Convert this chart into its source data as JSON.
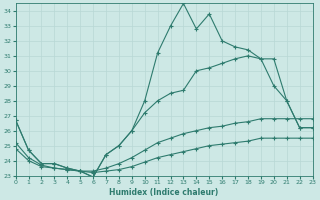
{
  "xlabel": "Humidex (Indice chaleur)",
  "xlim": [
    0,
    23
  ],
  "ylim": [
    23,
    34.5
  ],
  "yticks": [
    23,
    24,
    25,
    26,
    27,
    28,
    29,
    30,
    31,
    32,
    33,
    34
  ],
  "xticks": [
    0,
    1,
    2,
    3,
    4,
    5,
    6,
    7,
    8,
    9,
    10,
    11,
    12,
    13,
    14,
    15,
    16,
    17,
    18,
    19,
    20,
    21,
    22,
    23
  ],
  "bg_color": "#cde8e5",
  "grid_color": "#b8d8d5",
  "line_color": "#2e7b6e",
  "lines": [
    {
      "x": [
        0,
        1,
        2,
        3,
        4,
        5,
        6,
        7,
        8,
        9,
        10,
        11,
        12,
        13,
        14,
        15,
        16,
        17,
        18,
        19,
        20,
        21,
        22,
        23
      ],
      "y": [
        26.7,
        24.7,
        23.8,
        23.8,
        23.5,
        23.3,
        22.9,
        24.4,
        25.0,
        26.0,
        28.0,
        31.2,
        33.0,
        34.5,
        32.8,
        33.8,
        32.0,
        31.6,
        31.4,
        30.8,
        30.8,
        28.0,
        26.2,
        26.2
      ]
    },
    {
      "x": [
        0,
        1,
        2,
        3,
        4,
        5,
        6,
        7,
        8,
        9,
        10,
        11,
        12,
        13,
        14,
        15,
        16,
        17,
        18,
        19,
        20,
        21,
        22,
        23
      ],
      "y": [
        26.7,
        24.7,
        23.8,
        23.8,
        23.5,
        23.3,
        22.9,
        24.4,
        25.0,
        26.0,
        27.2,
        28.0,
        28.5,
        28.7,
        30.0,
        30.2,
        30.5,
        30.8,
        31.0,
        30.8,
        29.0,
        28.0,
        26.2,
        26.2
      ]
    },
    {
      "x": [
        0,
        1,
        2,
        3,
        4,
        5,
        6,
        7,
        8,
        9,
        10,
        11,
        12,
        13,
        14,
        15,
        16,
        17,
        18,
        19,
        20,
        21,
        22,
        23
      ],
      "y": [
        25.2,
        24.2,
        23.7,
        23.5,
        23.4,
        23.3,
        23.3,
        23.5,
        23.8,
        24.2,
        24.7,
        25.2,
        25.5,
        25.8,
        26.0,
        26.2,
        26.3,
        26.5,
        26.6,
        26.8,
        26.8,
        26.8,
        26.8,
        26.8
      ]
    },
    {
      "x": [
        0,
        1,
        2,
        3,
        4,
        5,
        6,
        7,
        8,
        9,
        10,
        11,
        12,
        13,
        14,
        15,
        16,
        17,
        18,
        19,
        20,
        21,
        22,
        23
      ],
      "y": [
        24.8,
        24.0,
        23.6,
        23.5,
        23.4,
        23.3,
        23.2,
        23.3,
        23.4,
        23.6,
        23.9,
        24.2,
        24.4,
        24.6,
        24.8,
        25.0,
        25.1,
        25.2,
        25.3,
        25.5,
        25.5,
        25.5,
        25.5,
        25.5
      ]
    }
  ]
}
